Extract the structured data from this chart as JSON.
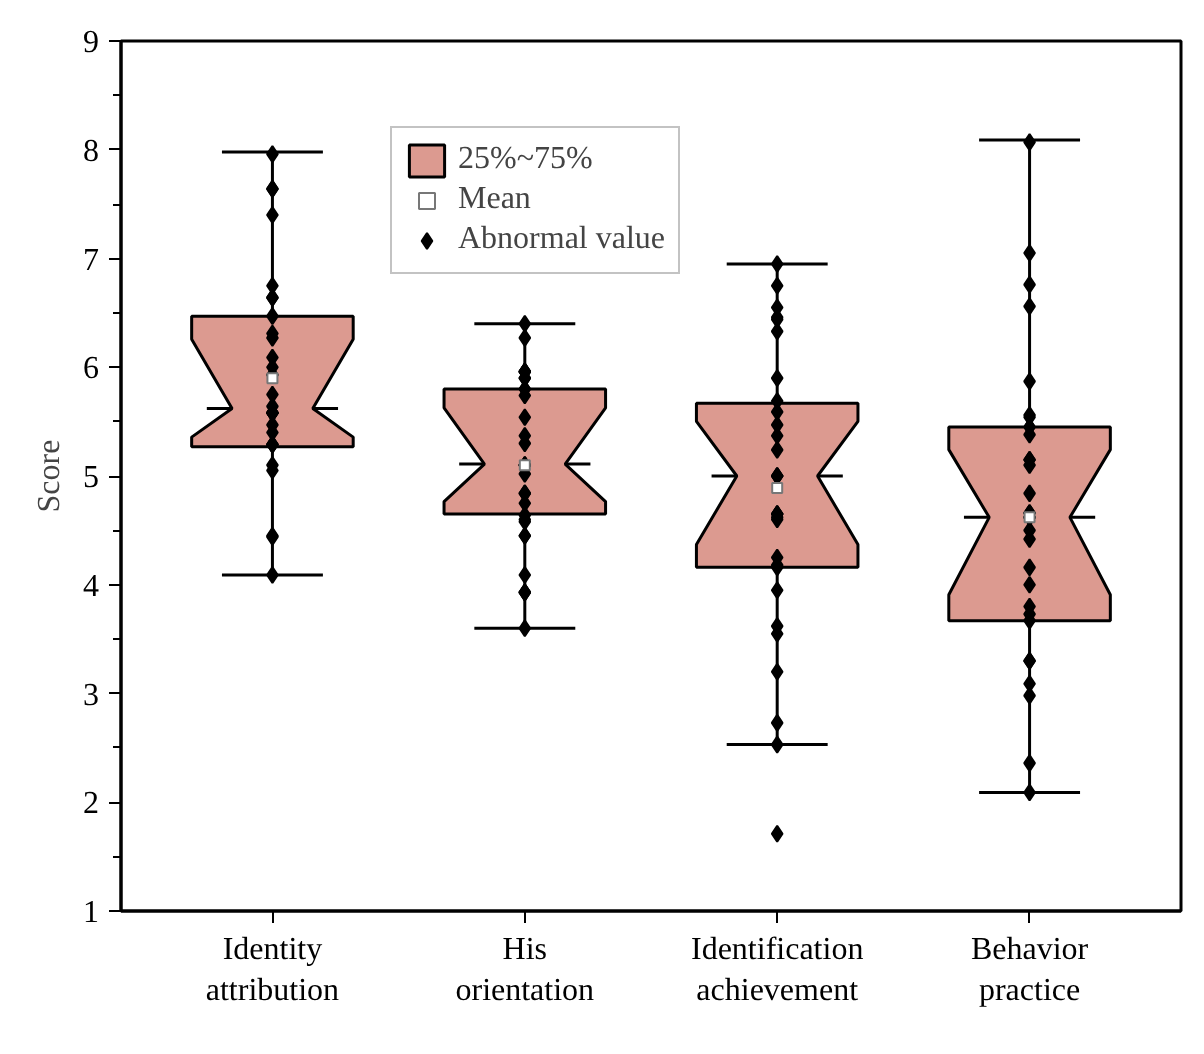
{
  "chart_data": {
    "type": "box",
    "categories": [
      "Identity attribution",
      "His orientation",
      "Identification achievement",
      "Behavior practice"
    ],
    "ylabel": "Score",
    "ylim": [
      1,
      9
    ],
    "yticks": [
      1,
      2,
      3,
      4,
      5,
      6,
      7,
      8,
      9
    ],
    "grid": false,
    "legend": "top",
    "series": [
      {
        "type": "box",
        "name": "25%~75%",
        "color": "#dc9a90",
        "boxes": [
          {
            "low": 4.09,
            "q1": 5.27,
            "median": 5.62,
            "q3": 6.47,
            "high": 7.98
          },
          {
            "low": 3.6,
            "q1": 4.65,
            "median": 5.11,
            "q3": 5.8,
            "high": 6.4
          },
          {
            "low": 2.53,
            "q1": 4.16,
            "median": 5.0,
            "q3": 5.67,
            "high": 6.95
          },
          {
            "low": 2.09,
            "q1": 3.67,
            "median": 4.62,
            "q3": 5.45,
            "high": 8.09
          }
        ]
      },
      {
        "type": "scatter",
        "name": "Mean",
        "color": "#ffffff",
        "marker": "square",
        "x": [
          "Identity attribution",
          "His orientation",
          "Identification achievement",
          "Behavior practice"
        ],
        "values": [
          5.9,
          5.1,
          4.89,
          4.62
        ]
      },
      {
        "type": "scatter",
        "name": "Abnormal value",
        "color": "#000000",
        "marker": "diamond",
        "x": [
          "Identity attribution",
          "Identity attribution",
          "Identity attribution",
          "Identity attribution",
          "Identity attribution",
          "Identity attribution",
          "Identity attribution",
          "Identity attribution",
          "Identity attribution",
          "Identity attribution",
          "Identity attribution",
          "Identity attribution",
          "Identity attribution",
          "Identity attribution",
          "Identity attribution",
          "Identity attribution",
          "Identity attribution",
          "Identity attribution",
          "Identity attribution",
          "Identity attribution",
          "Identity attribution",
          "Identity attribution",
          "Identity attribution",
          "Identity attribution",
          "Identity attribution",
          "Identity attribution",
          "Identity attribution",
          "Identity attribution",
          "Identity attribution",
          "His orientation",
          "His orientation",
          "His orientation",
          "His orientation",
          "His orientation",
          "His orientation",
          "His orientation",
          "His orientation",
          "His orientation",
          "His orientation",
          "His orientation",
          "His orientation",
          "His orientation",
          "His orientation",
          "His orientation",
          "His orientation",
          "His orientation",
          "His orientation",
          "His orientation",
          "His orientation",
          "His orientation",
          "His orientation",
          "His orientation",
          "His orientation",
          "His orientation",
          "His orientation",
          "His orientation",
          "His orientation",
          "His orientation",
          "His orientation",
          "His orientation",
          "Identification achievement",
          "Identification achievement",
          "Identification achievement",
          "Identification achievement",
          "Identification achievement",
          "Identification achievement",
          "Identification achievement",
          "Identification achievement",
          "Identification achievement",
          "Identification achievement",
          "Identification achievement",
          "Identification achievement",
          "Identification achievement",
          "Identification achievement",
          "Identification achievement",
          "Identification achievement",
          "Identification achievement",
          "Identification achievement",
          "Identification achievement",
          "Identification achievement",
          "Identification achievement",
          "Identification achievement",
          "Identification achievement",
          "Identification achievement",
          "Identification achievement",
          "Identification achievement",
          "Identification achievement",
          "Identification achievement",
          "Identification achievement",
          "Identification achievement",
          "Behavior practice",
          "Behavior practice",
          "Behavior practice",
          "Behavior practice",
          "Behavior practice",
          "Behavior practice",
          "Behavior practice",
          "Behavior practice",
          "Behavior practice",
          "Behavior practice",
          "Behavior practice",
          "Behavior practice",
          "Behavior practice",
          "Behavior practice",
          "Behavior practice",
          "Behavior practice",
          "Behavior practice",
          "Behavior practice",
          "Behavior practice",
          "Behavior practice",
          "Behavior practice",
          "Behavior practice",
          "Behavior practice",
          "Behavior practice",
          "Behavior practice",
          "Behavior practice",
          "Behavior practice",
          "Behavior practice",
          "Behavior practice",
          "Behavior practice",
          "Behavior practice"
        ],
        "values": [
          7.96,
          7.64,
          7.64,
          7.4,
          6.75,
          6.64,
          6.64,
          6.47,
          6.31,
          6.27,
          6.09,
          6.0,
          5.93,
          5.75,
          5.64,
          5.58,
          5.58,
          5.58,
          5.58,
          5.47,
          5.4,
          5.29,
          5.29,
          5.29,
          5.1,
          5.05,
          4.45,
          4.44,
          4.09,
          6.4,
          6.27,
          5.96,
          5.96,
          5.96,
          5.96,
          5.9,
          5.9,
          5.8,
          5.8,
          5.74,
          5.54,
          5.37,
          5.3,
          5.1,
          5.1,
          5.1,
          5.02,
          4.84,
          4.84,
          4.75,
          4.64,
          4.58,
          4.6,
          4.45,
          4.45,
          4.09,
          3.93,
          3.93,
          3.93,
          3.6,
          6.95,
          6.75,
          6.55,
          6.46,
          6.44,
          6.33,
          5.9,
          5.69,
          5.59,
          5.47,
          5.37,
          5.24,
          5.0,
          5.0,
          5.0,
          4.65,
          4.6,
          4.65,
          4.25,
          4.18,
          4.16,
          3.95,
          3.62,
          3.55,
          3.2,
          2.73,
          2.53,
          1.71,
          4.62,
          4.65,
          8.07,
          7.05,
          6.76,
          6.56,
          5.87,
          5.56,
          5.54,
          5.45,
          5.45,
          5.38,
          5.15,
          5.15,
          5.1,
          4.84,
          4.66,
          4.66,
          4.62,
          4.62,
          4.5,
          4.42,
          4.16,
          4.0,
          3.8,
          3.73,
          3.67,
          3.3,
          3.3,
          3.09,
          2.98,
          2.36,
          2.09
        ]
      }
    ]
  }
}
